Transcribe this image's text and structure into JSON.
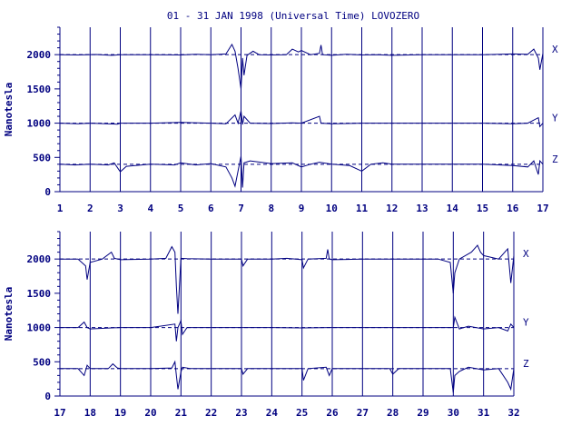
{
  "title": "01 - 31 JAN 1998 (Universal Time) LOVOZERO",
  "colors": {
    "ink": "#000080",
    "background": "#ffffff"
  },
  "chart_data": [
    {
      "type": "line",
      "x_range": [
        1,
        17
      ],
      "x_ticks": [
        1,
        2,
        3,
        4,
        5,
        6,
        7,
        8,
        9,
        10,
        11,
        12,
        13,
        14,
        15,
        16,
        17
      ],
      "ylabel": "Nanotesla",
      "ylim": [
        0,
        2400
      ],
      "y_ticks": [
        0,
        500,
        1000,
        1500,
        2000
      ],
      "baselines": [
        2000,
        1000,
        400
      ],
      "grid": "vertical at each day",
      "series": [
        {
          "name": "X",
          "baseline": 2000,
          "points": [
            [
              1,
              2000
            ],
            [
              1.6,
              1995
            ],
            [
              2.2,
              2002
            ],
            [
              2.7,
              1990
            ],
            [
              3.0,
              1998
            ],
            [
              4.0,
              2000
            ],
            [
              5.0,
              1995
            ],
            [
              5.5,
              2005
            ],
            [
              6.0,
              2000
            ],
            [
              6.5,
              2010
            ],
            [
              6.7,
              2150
            ],
            [
              6.8,
              2050
            ],
            [
              6.9,
              1800
            ],
            [
              7.0,
              1500
            ],
            [
              7.05,
              1950
            ],
            [
              7.1,
              1700
            ],
            [
              7.2,
              1990
            ],
            [
              7.4,
              2050
            ],
            [
              7.6,
              2000
            ],
            [
              8.0,
              1995
            ],
            [
              8.5,
              2000
            ],
            [
              8.7,
              2080
            ],
            [
              8.9,
              2040
            ],
            [
              9.0,
              2060
            ],
            [
              9.3,
              2000
            ],
            [
              9.6,
              2020
            ],
            [
              9.65,
              2140
            ],
            [
              9.7,
              2000
            ],
            [
              10.0,
              1990
            ],
            [
              10.5,
              2005
            ],
            [
              11.0,
              1995
            ],
            [
              11.5,
              2000
            ],
            [
              12.0,
              1990
            ],
            [
              13.0,
              2000
            ],
            [
              14.0,
              2000
            ],
            [
              15.0,
              2000
            ],
            [
              16.0,
              2010
            ],
            [
              16.5,
              2005
            ],
            [
              16.7,
              2080
            ],
            [
              16.85,
              1950
            ],
            [
              16.9,
              1780
            ],
            [
              17.0,
              2020
            ]
          ]
        },
        {
          "name": "Y",
          "baseline": 1000,
          "points": [
            [
              1,
              1000
            ],
            [
              1.6,
              990
            ],
            [
              2.0,
              1000
            ],
            [
              2.9,
              985
            ],
            [
              3.0,
              1000
            ],
            [
              4.0,
              1000
            ],
            [
              5.0,
              1010
            ],
            [
              6.0,
              1000
            ],
            [
              6.5,
              990
            ],
            [
              6.8,
              1120
            ],
            [
              6.9,
              1000
            ],
            [
              7.0,
              1180
            ],
            [
              7.05,
              980
            ],
            [
              7.1,
              1100
            ],
            [
              7.3,
              1000
            ],
            [
              8.0,
              995
            ],
            [
              8.7,
              1005
            ],
            [
              9.0,
              1000
            ],
            [
              9.6,
              1100
            ],
            [
              9.65,
              1000
            ],
            [
              10.0,
              990
            ],
            [
              11.0,
              1000
            ],
            [
              12.0,
              1000
            ],
            [
              13.0,
              1000
            ],
            [
              14.0,
              1000
            ],
            [
              15.0,
              1000
            ],
            [
              16.0,
              990
            ],
            [
              16.5,
              1000
            ],
            [
              16.85,
              1080
            ],
            [
              16.9,
              950
            ],
            [
              17.0,
              1000
            ]
          ]
        },
        {
          "name": "Z",
          "baseline": 400,
          "points": [
            [
              1,
              400
            ],
            [
              1.5,
              390
            ],
            [
              2.0,
              400
            ],
            [
              2.6,
              390
            ],
            [
              2.8,
              420
            ],
            [
              3.0,
              290
            ],
            [
              3.2,
              370
            ],
            [
              4.0,
              400
            ],
            [
              4.8,
              390
            ],
            [
              5.0,
              420
            ],
            [
              5.5,
              390
            ],
            [
              6.0,
              410
            ],
            [
              6.5,
              360
            ],
            [
              6.7,
              200
            ],
            [
              6.8,
              80
            ],
            [
              6.9,
              300
            ],
            [
              7.0,
              520
            ],
            [
              7.05,
              60
            ],
            [
              7.1,
              420
            ],
            [
              7.3,
              450
            ],
            [
              8.0,
              410
            ],
            [
              8.7,
              420
            ],
            [
              9.0,
              360
            ],
            [
              9.3,
              400
            ],
            [
              9.6,
              430
            ],
            [
              10.0,
              400
            ],
            [
              10.6,
              380
            ],
            [
              11.0,
              300
            ],
            [
              11.3,
              400
            ],
            [
              11.7,
              420
            ],
            [
              12.0,
              400
            ],
            [
              13.0,
              400
            ],
            [
              14.0,
              400
            ],
            [
              15.0,
              400
            ],
            [
              16.0,
              380
            ],
            [
              16.5,
              360
            ],
            [
              16.7,
              450
            ],
            [
              16.85,
              250
            ],
            [
              16.9,
              450
            ],
            [
              17.0,
              400
            ]
          ]
        }
      ]
    },
    {
      "type": "line",
      "x_range": [
        17,
        32
      ],
      "x_ticks": [
        17,
        18,
        19,
        20,
        21,
        22,
        23,
        24,
        25,
        26,
        27,
        28,
        29,
        30,
        31,
        32
      ],
      "ylabel": "Nanotesla",
      "ylim": [
        0,
        2400
      ],
      "y_ticks": [
        0,
        500,
        1000,
        1500,
        2000
      ],
      "baselines": [
        2000,
        1000,
        400
      ],
      "grid": "vertical at each day",
      "series": [
        {
          "name": "X",
          "baseline": 2000,
          "points": [
            [
              17,
              2000
            ],
            [
              17.6,
              2000
            ],
            [
              17.85,
              1900
            ],
            [
              17.9,
              1700
            ],
            [
              18.0,
              1950
            ],
            [
              18.4,
              2000
            ],
            [
              18.7,
              2100
            ],
            [
              18.8,
              2010
            ],
            [
              19.0,
              1990
            ],
            [
              20.0,
              2000
            ],
            [
              20.5,
              2010
            ],
            [
              20.7,
              2180
            ],
            [
              20.8,
              2100
            ],
            [
              20.85,
              1600
            ],
            [
              20.9,
              1200
            ],
            [
              21.0,
              2010
            ],
            [
              21.2,
              2005
            ],
            [
              22.0,
              2000
            ],
            [
              23.0,
              2000
            ],
            [
              23.05,
              1900
            ],
            [
              23.2,
              2000
            ],
            [
              24.0,
              2000
            ],
            [
              24.5,
              2010
            ],
            [
              25.0,
              1990
            ],
            [
              25.05,
              1870
            ],
            [
              25.2,
              2000
            ],
            [
              25.8,
              2010
            ],
            [
              25.85,
              2140
            ],
            [
              25.9,
              2000
            ],
            [
              26.0,
              1990
            ],
            [
              27.0,
              2000
            ],
            [
              28.0,
              2000
            ],
            [
              29.0,
              2000
            ],
            [
              29.5,
              2000
            ],
            [
              29.9,
              1950
            ],
            [
              30.0,
              1500
            ],
            [
              30.05,
              1800
            ],
            [
              30.2,
              2000
            ],
            [
              30.6,
              2100
            ],
            [
              30.8,
              2200
            ],
            [
              30.9,
              2100
            ],
            [
              31.0,
              2050
            ],
            [
              31.5,
              2000
            ],
            [
              31.8,
              2150
            ],
            [
              31.9,
              1650
            ],
            [
              32.0,
              2050
            ]
          ]
        },
        {
          "name": "Y",
          "baseline": 1000,
          "points": [
            [
              17,
              1000
            ],
            [
              17.6,
              1000
            ],
            [
              17.8,
              1080
            ],
            [
              17.9,
              1000
            ],
            [
              18.0,
              980
            ],
            [
              19.0,
              1000
            ],
            [
              20.0,
              1000
            ],
            [
              20.8,
              1050
            ],
            [
              20.85,
              800
            ],
            [
              20.9,
              1000
            ],
            [
              21.0,
              1100
            ],
            [
              21.05,
              900
            ],
            [
              21.2,
              1000
            ],
            [
              22.0,
              1000
            ],
            [
              23.0,
              1000
            ],
            [
              24.0,
              1000
            ],
            [
              25.0,
              995
            ],
            [
              25.9,
              1000
            ],
            [
              26.0,
              1000
            ],
            [
              27.0,
              1000
            ],
            [
              28.0,
              1000
            ],
            [
              29.0,
              1000
            ],
            [
              30.0,
              1000
            ],
            [
              30.05,
              1150
            ],
            [
              30.2,
              980
            ],
            [
              30.5,
              1020
            ],
            [
              31.0,
              980
            ],
            [
              31.5,
              1000
            ],
            [
              31.8,
              950
            ],
            [
              31.9,
              1050
            ],
            [
              32.0,
              1000
            ]
          ]
        },
        {
          "name": "Z",
          "baseline": 400,
          "points": [
            [
              17,
              400
            ],
            [
              17.6,
              400
            ],
            [
              17.8,
              300
            ],
            [
              17.9,
              450
            ],
            [
              18.0,
              400
            ],
            [
              18.6,
              400
            ],
            [
              18.75,
              470
            ],
            [
              18.9,
              410
            ],
            [
              19.0,
              400
            ],
            [
              20.0,
              400
            ],
            [
              20.7,
              410
            ],
            [
              20.8,
              500
            ],
            [
              20.85,
              300
            ],
            [
              20.9,
              100
            ],
            [
              21.0,
              350
            ],
            [
              21.05,
              420
            ],
            [
              21.3,
              400
            ],
            [
              22.0,
              400
            ],
            [
              23.0,
              400
            ],
            [
              23.05,
              320
            ],
            [
              23.2,
              400
            ],
            [
              24.0,
              400
            ],
            [
              25.0,
              400
            ],
            [
              25.05,
              230
            ],
            [
              25.2,
              400
            ],
            [
              25.8,
              420
            ],
            [
              25.9,
              300
            ],
            [
              26.0,
              400
            ],
            [
              27.0,
              400
            ],
            [
              27.9,
              400
            ],
            [
              28.0,
              320
            ],
            [
              28.2,
              400
            ],
            [
              29.0,
              400
            ],
            [
              29.9,
              400
            ],
            [
              30.0,
              50
            ],
            [
              30.05,
              300
            ],
            [
              30.2,
              360
            ],
            [
              30.5,
              420
            ],
            [
              31.0,
              380
            ],
            [
              31.5,
              400
            ],
            [
              31.8,
              200
            ],
            [
              31.9,
              100
            ],
            [
              32.0,
              400
            ]
          ]
        }
      ]
    }
  ]
}
